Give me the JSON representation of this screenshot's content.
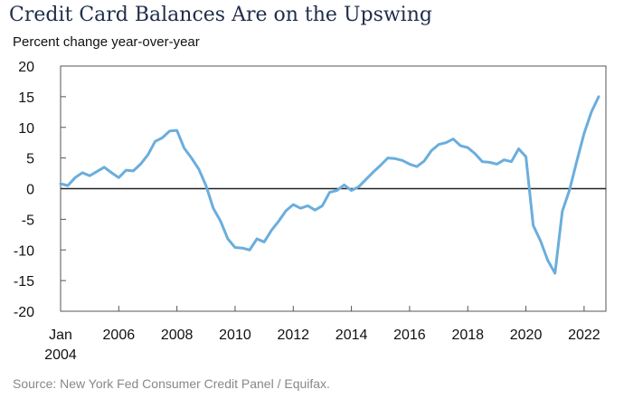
{
  "chart_data": {
    "type": "line",
    "title": "Credit Card Balances Are on the Upswing",
    "ylabel": "Percent change year-over-year",
    "xlabel": "",
    "source": "Source: New York Fed Consumer Credit Panel / Equifax.",
    "ylim": [
      -20,
      20
    ],
    "xlim": [
      2004.0,
      2022.75
    ],
    "yticks": [
      20,
      15,
      10,
      5,
      0,
      -5,
      -10,
      -15,
      -20
    ],
    "ytick_labels": [
      "20",
      "15",
      "10",
      "5",
      "0",
      "-5",
      "-10",
      "-15",
      "-20"
    ],
    "xticks": [
      {
        "value": 2004,
        "label": "Jan",
        "label2": "2004"
      },
      {
        "value": 2006,
        "label": "2006"
      },
      {
        "value": 2008,
        "label": "2008"
      },
      {
        "value": 2010,
        "label": "2010"
      },
      {
        "value": 2012,
        "label": "2012"
      },
      {
        "value": 2014,
        "label": "2014"
      },
      {
        "value": 2016,
        "label": "2016"
      },
      {
        "value": 2018,
        "label": "2018"
      },
      {
        "value": 2020,
        "label": "2020"
      },
      {
        "value": 2022,
        "label": "2022"
      }
    ],
    "grid": false,
    "zero_line": true,
    "line_color": "#6aaedc",
    "series": [
      {
        "x": [
          2004.0,
          2004.25,
          2004.5,
          2004.75,
          2005.0,
          2005.25,
          2005.5,
          2005.75,
          2006.0,
          2006.25,
          2006.5,
          2006.75,
          2007.0,
          2007.25,
          2007.5,
          2007.75,
          2008.0,
          2008.25,
          2008.5,
          2008.75,
          2009.0,
          2009.25,
          2009.5,
          2009.75,
          2010.0,
          2010.25,
          2010.5,
          2010.75,
          2011.0,
          2011.25,
          2011.5,
          2011.75,
          2012.0,
          2012.25,
          2012.5,
          2012.75,
          2013.0,
          2013.25,
          2013.5,
          2013.75,
          2014.0,
          2014.25,
          2014.5,
          2014.75,
          2015.0,
          2015.25,
          2015.5,
          2015.75,
          2016.0,
          2016.25,
          2016.5,
          2016.75,
          2017.0,
          2017.25,
          2017.5,
          2017.75,
          2018.0,
          2018.25,
          2018.5,
          2018.75,
          2019.0,
          2019.25,
          2019.5,
          2019.75,
          2020.0,
          2020.25,
          2020.5,
          2020.75,
          2021.0,
          2021.25,
          2021.5,
          2021.75,
          2022.0,
          2022.25,
          2022.5
        ],
        "values": [
          0.8,
          0.5,
          1.8,
          2.6,
          2.1,
          2.8,
          3.5,
          2.6,
          1.8,
          3.0,
          2.9,
          4.0,
          5.5,
          7.7,
          8.3,
          9.4,
          9.5,
          6.6,
          5.0,
          3.2,
          0.5,
          -3.2,
          -5.3,
          -8.2,
          -9.6,
          -9.7,
          -10.0,
          -8.2,
          -8.7,
          -6.8,
          -5.3,
          -3.6,
          -2.6,
          -3.2,
          -2.8,
          -3.5,
          -2.8,
          -0.6,
          -0.3,
          0.6,
          -0.3,
          0.3,
          1.5,
          2.7,
          3.8,
          5.0,
          4.9,
          4.6,
          4.0,
          3.6,
          4.5,
          6.2,
          7.2,
          7.5,
          8.1,
          7.0,
          6.7,
          5.7,
          4.4,
          4.3,
          4.0,
          4.7,
          4.4,
          6.5,
          5.2,
          -6.0,
          -8.5,
          -11.7,
          -13.8,
          -3.7,
          -0.2,
          4.5,
          9.0,
          12.5,
          15.0
        ]
      }
    ]
  }
}
